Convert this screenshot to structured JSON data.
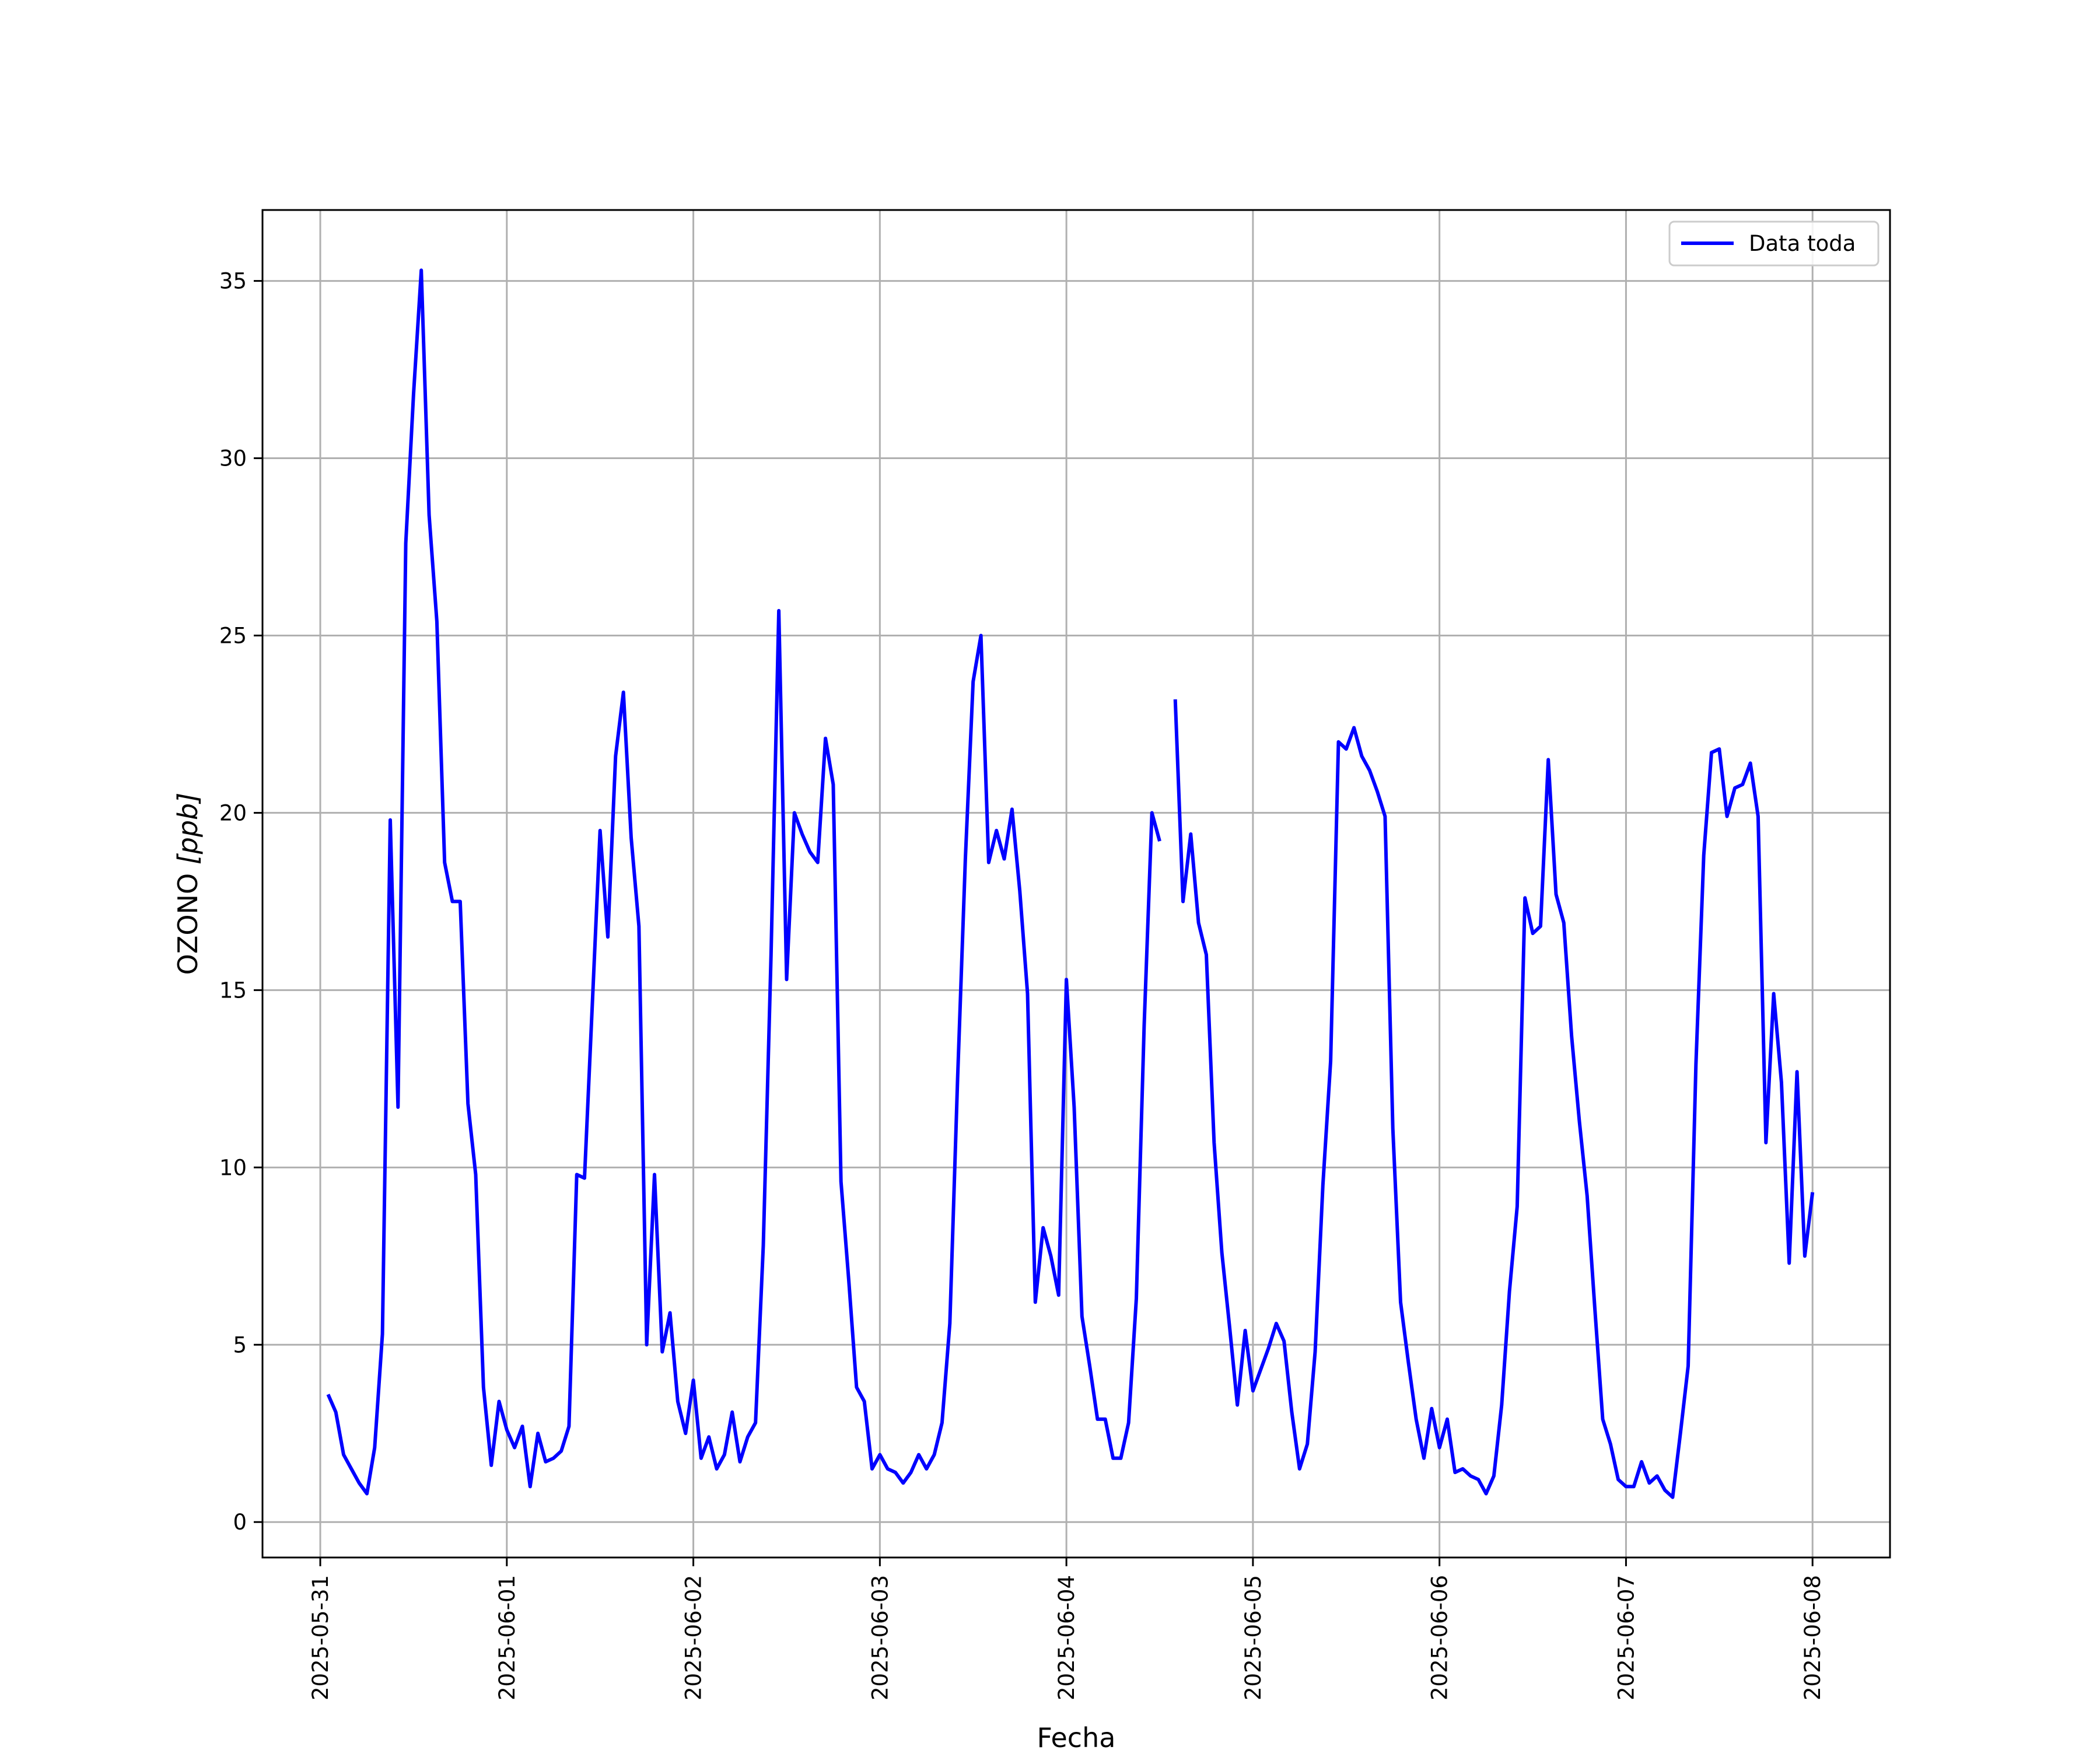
{
  "chart_data": {
    "type": "line",
    "title": "",
    "xlabel": "Fecha",
    "ylabel_main": "OZONO ",
    "ylabel_unit": "[ppb]",
    "ylim": [
      -1,
      37
    ],
    "xlim": [
      "2025-05-30T16:34",
      "2025-06-08T09:58"
    ],
    "x_ticks": [
      "2025-05-31",
      "2025-06-01",
      "2025-06-02",
      "2025-06-03",
      "2025-06-04",
      "2025-06-05",
      "2025-06-06",
      "2025-06-07",
      "2025-06-08"
    ],
    "y_ticks": [
      0,
      5,
      10,
      15,
      20,
      25,
      30,
      35
    ],
    "grid": true,
    "legend": {
      "position": "top-right",
      "entries": [
        "Data toda"
      ]
    },
    "colors": {
      "series": "#0000ff",
      "grid": "#b0b0b0"
    },
    "series": [
      {
        "name": "Data toda",
        "segments": [
          {
            "start": "2025-05-31T01:00",
            "step_hours": 1,
            "values": [
              3.6,
              3.1,
              1.9,
              1.5,
              1.1,
              0.8,
              2.1,
              5.3,
              19.8,
              11.7,
              27.6,
              31.8,
              35.3,
              28.4,
              25.4,
              18.6,
              17.5,
              17.5,
              11.8,
              9.8,
              3.8,
              1.6,
              3.4,
              2.6,
              2.1,
              2.7,
              1.0,
              2.5,
              1.7,
              1.8,
              2.0,
              2.7,
              9.8,
              9.7,
              14.6,
              19.5,
              16.5,
              21.6,
              23.4,
              19.3,
              16.8,
              5.0,
              9.8,
              4.8,
              5.9,
              3.4,
              2.5,
              4.0,
              1.8,
              2.4,
              1.5,
              1.9,
              3.1,
              1.7,
              2.4,
              2.8,
              7.8,
              16.0,
              25.7,
              15.3,
              20.0,
              19.4,
              18.9,
              18.6,
              22.1,
              20.8,
              9.6,
              6.8,
              3.8,
              3.4,
              1.5,
              1.9,
              1.5,
              1.4,
              1.1,
              1.4,
              1.9,
              1.5,
              1.9,
              2.8,
              5.6,
              12.5,
              18.7,
              23.7,
              25.0,
              18.6,
              19.5,
              18.7,
              20.1,
              17.8,
              14.9,
              6.2,
              8.3,
              7.5,
              6.4,
              15.3,
              11.7,
              5.8,
              4.4,
              2.9,
              2.9,
              1.8,
              1.8,
              2.8,
              6.3,
              14.0,
              20.0,
              19.2
            ]
          },
          {
            "start": "2025-06-04T14:00",
            "step_hours": 1,
            "values": [
              23.2,
              17.5,
              19.4,
              16.9,
              16.0,
              10.7,
              7.6,
              5.5,
              3.3,
              5.4,
              3.7,
              4.3,
              4.9,
              5.6,
              5.1,
              3.1,
              1.5,
              2.2,
              4.8,
              9.5,
              13.0,
              22.0,
              21.8,
              22.4,
              21.6,
              21.2,
              20.6,
              19.9,
              11.1,
              6.2,
              4.5,
              2.9,
              1.8,
              3.2,
              2.1,
              2.9,
              1.4,
              1.5,
              1.3,
              1.2,
              0.8,
              1.3,
              3.3,
              6.5,
              8.9,
              17.6,
              16.6,
              16.8,
              21.5,
              17.7,
              16.9,
              13.7,
              11.3,
              9.2,
              6.0,
              2.9,
              2.2,
              1.2,
              1.0,
              1.0,
              1.7,
              1.1,
              1.3,
              0.9,
              0.7,
              2.5,
              4.4,
              12.9,
              18.8,
              21.7,
              21.8,
              19.9,
              20.7,
              20.8,
              21.4,
              19.9,
              10.7,
              14.9,
              12.4,
              7.3,
              12.7,
              7.5,
              9.3
            ]
          }
        ]
      }
    ]
  }
}
